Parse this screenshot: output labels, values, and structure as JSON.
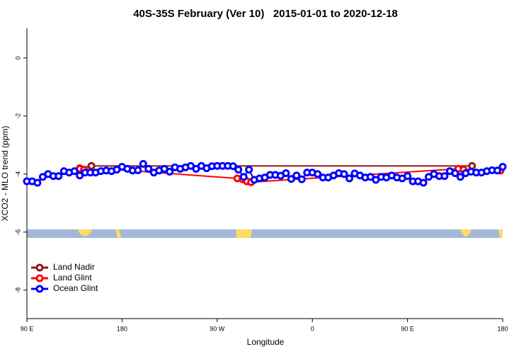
{
  "chart_data": {
    "type": "line",
    "title": "40S-35S February (Ver 10)   2015-01-01 to 2020-12-18",
    "x_label": "Longitude",
    "y_label": "XCO2 - MLO trend (ppm)",
    "xlim": [
      90,
      540
    ],
    "ylim": [
      -8.98,
      1.02
    ],
    "xticks": [
      {
        "value": 90,
        "label": "90 E"
      },
      180,
      {
        "value": 270,
        "label": "90 W"
      },
      {
        "value": 360,
        "label": "0"
      },
      {
        "value": 450,
        "label": "90 E"
      },
      {
        "value": 540,
        "label": "180"
      }
    ],
    "yticks": [
      0,
      -2,
      -4,
      -6,
      -8
    ],
    "legend": "bottom-left",
    "series": [
      {
        "name": "Land Nadir",
        "color": "#8b1a1a",
        "x": [
          140,
          151,
          511
        ],
        "values": [
          -3.8,
          -3.72,
          -3.72
        ]
      },
      {
        "name": "Land Glint",
        "color": "#ff0000",
        "x": [
          140,
          144,
          175,
          289,
          294,
          298,
          302,
          498,
          503,
          538
        ],
        "values": [
          -3.82,
          -3.85,
          -3.85,
          -4.15,
          -4.18,
          -4.25,
          -4.28,
          -3.82,
          -3.85,
          -3.88
        ]
      },
      {
        "name": "Ocean Glint",
        "color": "#0000ff",
        "x": [
          90,
          95,
          100,
          105,
          110,
          115,
          120,
          125,
          130,
          135,
          140,
          145,
          150,
          155,
          160,
          165,
          170,
          175,
          180,
          185,
          190,
          195,
          200,
          205,
          210,
          215,
          220,
          225,
          230,
          235,
          240,
          245,
          250,
          255,
          260,
          265,
          270,
          275,
          280,
          285,
          290,
          295,
          300,
          305,
          310,
          315,
          320,
          325,
          330,
          335,
          340,
          345,
          350,
          355,
          360,
          365,
          370,
          375,
          380,
          385,
          390,
          395,
          400,
          405,
          410,
          415,
          420,
          425,
          430,
          435,
          440,
          445,
          450,
          455,
          460,
          465,
          470,
          475,
          480,
          485,
          490,
          495,
          500,
          505,
          510,
          515,
          520,
          525,
          530,
          535,
          540
        ],
        "values": [
          -4.25,
          -4.25,
          -4.3,
          -4.1,
          -4.0,
          -4.07,
          -4.07,
          -3.9,
          -3.95,
          -3.9,
          -4.05,
          -3.95,
          -3.95,
          -3.95,
          -3.9,
          -3.88,
          -3.9,
          -3.85,
          -3.75,
          -3.82,
          -3.88,
          -3.87,
          -3.65,
          -3.82,
          -3.95,
          -3.88,
          -3.82,
          -3.92,
          -3.77,
          -3.82,
          -3.77,
          -3.72,
          -3.82,
          -3.72,
          -3.8,
          -3.73,
          -3.72,
          -3.72,
          -3.72,
          -3.73,
          -3.85,
          -4.1,
          -3.85,
          -4.2,
          -4.15,
          -4.12,
          -4.03,
          -4.03,
          -4.06,
          -3.97,
          -4.17,
          -4.05,
          -4.18,
          -3.95,
          -3.95,
          -4.0,
          -4.12,
          -4.12,
          -4.05,
          -3.97,
          -4.0,
          -4.15,
          -3.98,
          -4.05,
          -4.12,
          -4.1,
          -4.2,
          -4.1,
          -4.12,
          -4.05,
          -4.12,
          -4.15,
          -4.07,
          -4.25,
          -4.25,
          -4.3,
          -4.1,
          -4.0,
          -4.07,
          -4.07,
          -3.9,
          -3.97,
          -4.1,
          -3.97,
          -3.92,
          -3.95,
          -3.95,
          -3.9,
          -3.87,
          -3.88,
          -3.75
        ]
      }
    ]
  }
}
